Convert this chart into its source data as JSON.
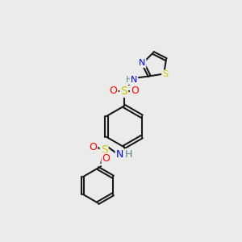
{
  "bg_color": "#ebebeb",
  "bond_color": "#1a1a1a",
  "atom_colors": {
    "N": "#0000ff",
    "S": "#cccc00",
    "O": "#ff0000",
    "H": "#4a8a8a",
    "C": "#1a1a1a"
  },
  "figsize": [
    3.0,
    3.0
  ],
  "dpi": 100
}
